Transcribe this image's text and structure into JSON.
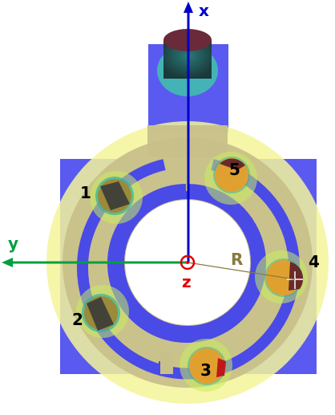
{
  "labels": {
    "x_axis": "x",
    "y_axis": "y",
    "z_axis": "z",
    "radius": "R"
  },
  "points": [
    {
      "id": "1"
    },
    {
      "id": "2"
    },
    {
      "id": "3"
    },
    {
      "id": "4"
    },
    {
      "id": "5"
    }
  ],
  "colors": {
    "base_plate": "#5a5af0",
    "ring_yellow": "#f5f59a",
    "tan_plate": "#c8c089",
    "slot_blue": "#4a4ae6",
    "hole_white": "#ffffff",
    "x_axis": "#0000c8",
    "y_axis": "#00a040",
    "z_marker": "#e00000",
    "r_label": "#8a7a40",
    "sensor_olive": "#9a8a3a",
    "sensor_orange": "#e0a030",
    "sensor_dark": "#3a3a3a",
    "halo_green": "#c8ec60",
    "halo_teal": "#30b0a0",
    "label_text": "#000000"
  }
}
